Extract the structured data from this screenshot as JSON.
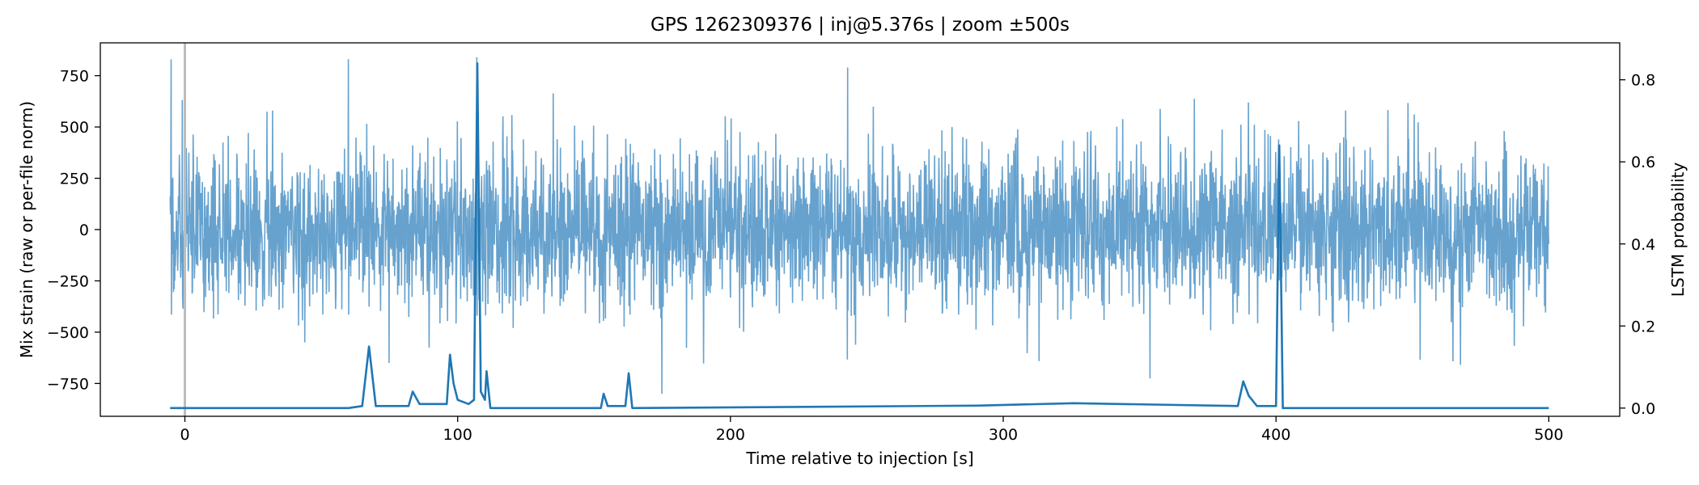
{
  "chart_data": {
    "type": "line",
    "title": "GPS 1262309376 | inj@5.376s | zoom ±500s",
    "xlabel": "Time relative to injection [s]",
    "ylabel": "Mix strain (raw or per-file norm)",
    "ylabel_right": "LSTM probability",
    "xlim": [
      -31,
      526
    ],
    "ylim": [
      -910,
      910
    ],
    "ylim_right": [
      -0.02,
      0.89
    ],
    "x_ticks": [
      0,
      100,
      200,
      300,
      400,
      500
    ],
    "y_ticks": [
      -750,
      -500,
      -250,
      0,
      250,
      500,
      750
    ],
    "y_ticks_right": [
      0.0,
      0.2,
      0.4,
      0.6,
      0.8
    ],
    "injection_marker_x": 0,
    "series": [
      {
        "axis": "left",
        "color": "#5f9dcb",
        "x_range": [
          -5.4,
          500
        ],
        "typical_envelope": [
          -400,
          400
        ],
        "extreme_range": [
          -800,
          840
        ],
        "notable_peaks": [
          {
            "x": -5,
            "y": 830
          },
          {
            "x": 60,
            "y": 830
          },
          {
            "x": 107,
            "y": 840
          },
          {
            "x": 243,
            "y": 790
          },
          {
            "x": 401,
            "y": 440
          }
        ]
      },
      {
        "axis": "right",
        "color": "#1f77b4",
        "x": [
          -5.4,
          60,
          65,
          67.5,
          70,
          82,
          83.5,
          86,
          96,
          97.2,
          98.5,
          100,
          104,
          106,
          107.2,
          108.5,
          110,
          110.6,
          112,
          152.5,
          153.5,
          155,
          161.5,
          162.7,
          164,
          290.5,
          326,
          386,
          388,
          390,
          393,
          400,
          401.2,
          402.5,
          500
        ],
        "y": [
          0.0,
          0.0,
          0.005,
          0.15,
          0.005,
          0.005,
          0.04,
          0.01,
          0.01,
          0.13,
          0.06,
          0.02,
          0.01,
          0.02,
          0.84,
          0.04,
          0.02,
          0.09,
          0.0,
          0.0,
          0.035,
          0.005,
          0.005,
          0.085,
          0.0,
          0.006,
          0.012,
          0.005,
          0.065,
          0.03,
          0.005,
          0.005,
          0.64,
          0.0,
          0.0
        ]
      }
    ],
    "grid": false
  }
}
